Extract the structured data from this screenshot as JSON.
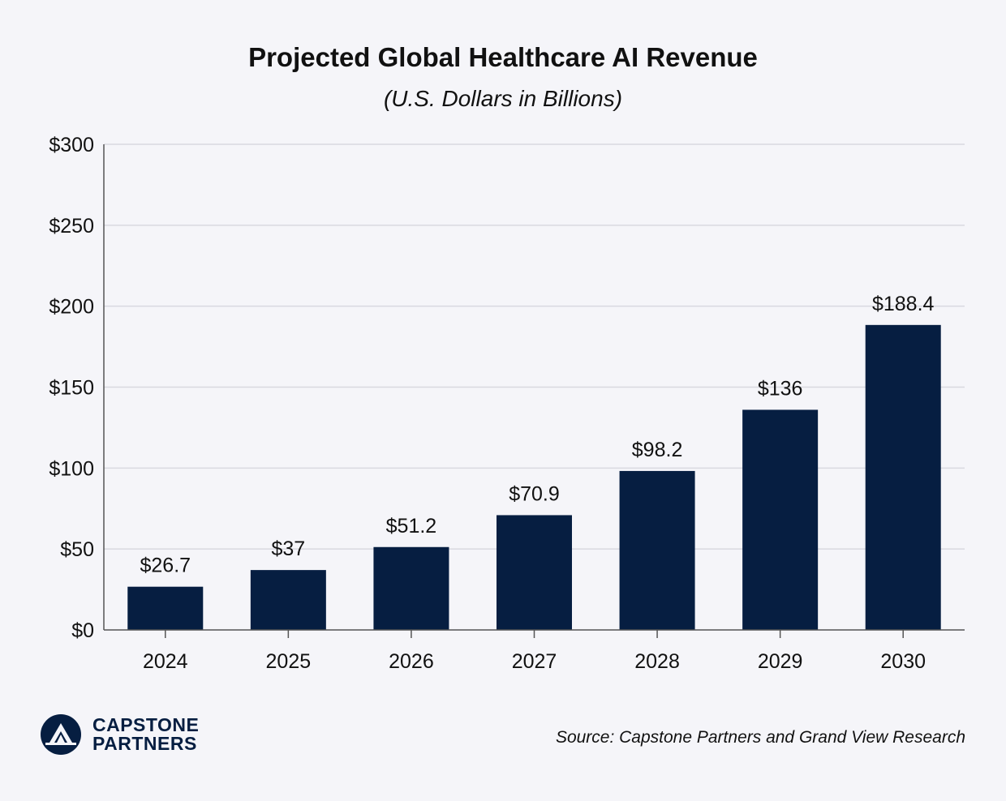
{
  "chart_data": {
    "type": "bar",
    "title": "Projected Global Healthcare AI Revenue",
    "subtitle": "(U.S. Dollars in Billions)",
    "categories": [
      "2024",
      "2025",
      "2026",
      "2027",
      "2028",
      "2029",
      "2030"
    ],
    "values": [
      26.7,
      37,
      51.2,
      70.9,
      98.2,
      136,
      188.4
    ],
    "data_labels": [
      "$26.7",
      "$37",
      "$51.2",
      "$70.9",
      "$98.2",
      "$136",
      "$188.4"
    ],
    "ylim": [
      0,
      300
    ],
    "yticks": [
      0,
      50,
      100,
      150,
      200,
      250,
      300
    ],
    "ytick_labels": [
      "$0",
      "$50",
      "$100",
      "$150",
      "$200",
      "$250",
      "$300"
    ],
    "xlabel": "",
    "ylabel": "",
    "grid": "horizontal",
    "bar_color": "#061e41",
    "grid_color": "#d9d9e0"
  },
  "footer": {
    "source": "Source: Capstone Partners and Grand View Research",
    "brand_line1": "CAPSTONE",
    "brand_line2": "PARTNERS",
    "brand_color": "#061e41",
    "logo_icon": "capstone-mountain-logo-icon"
  }
}
